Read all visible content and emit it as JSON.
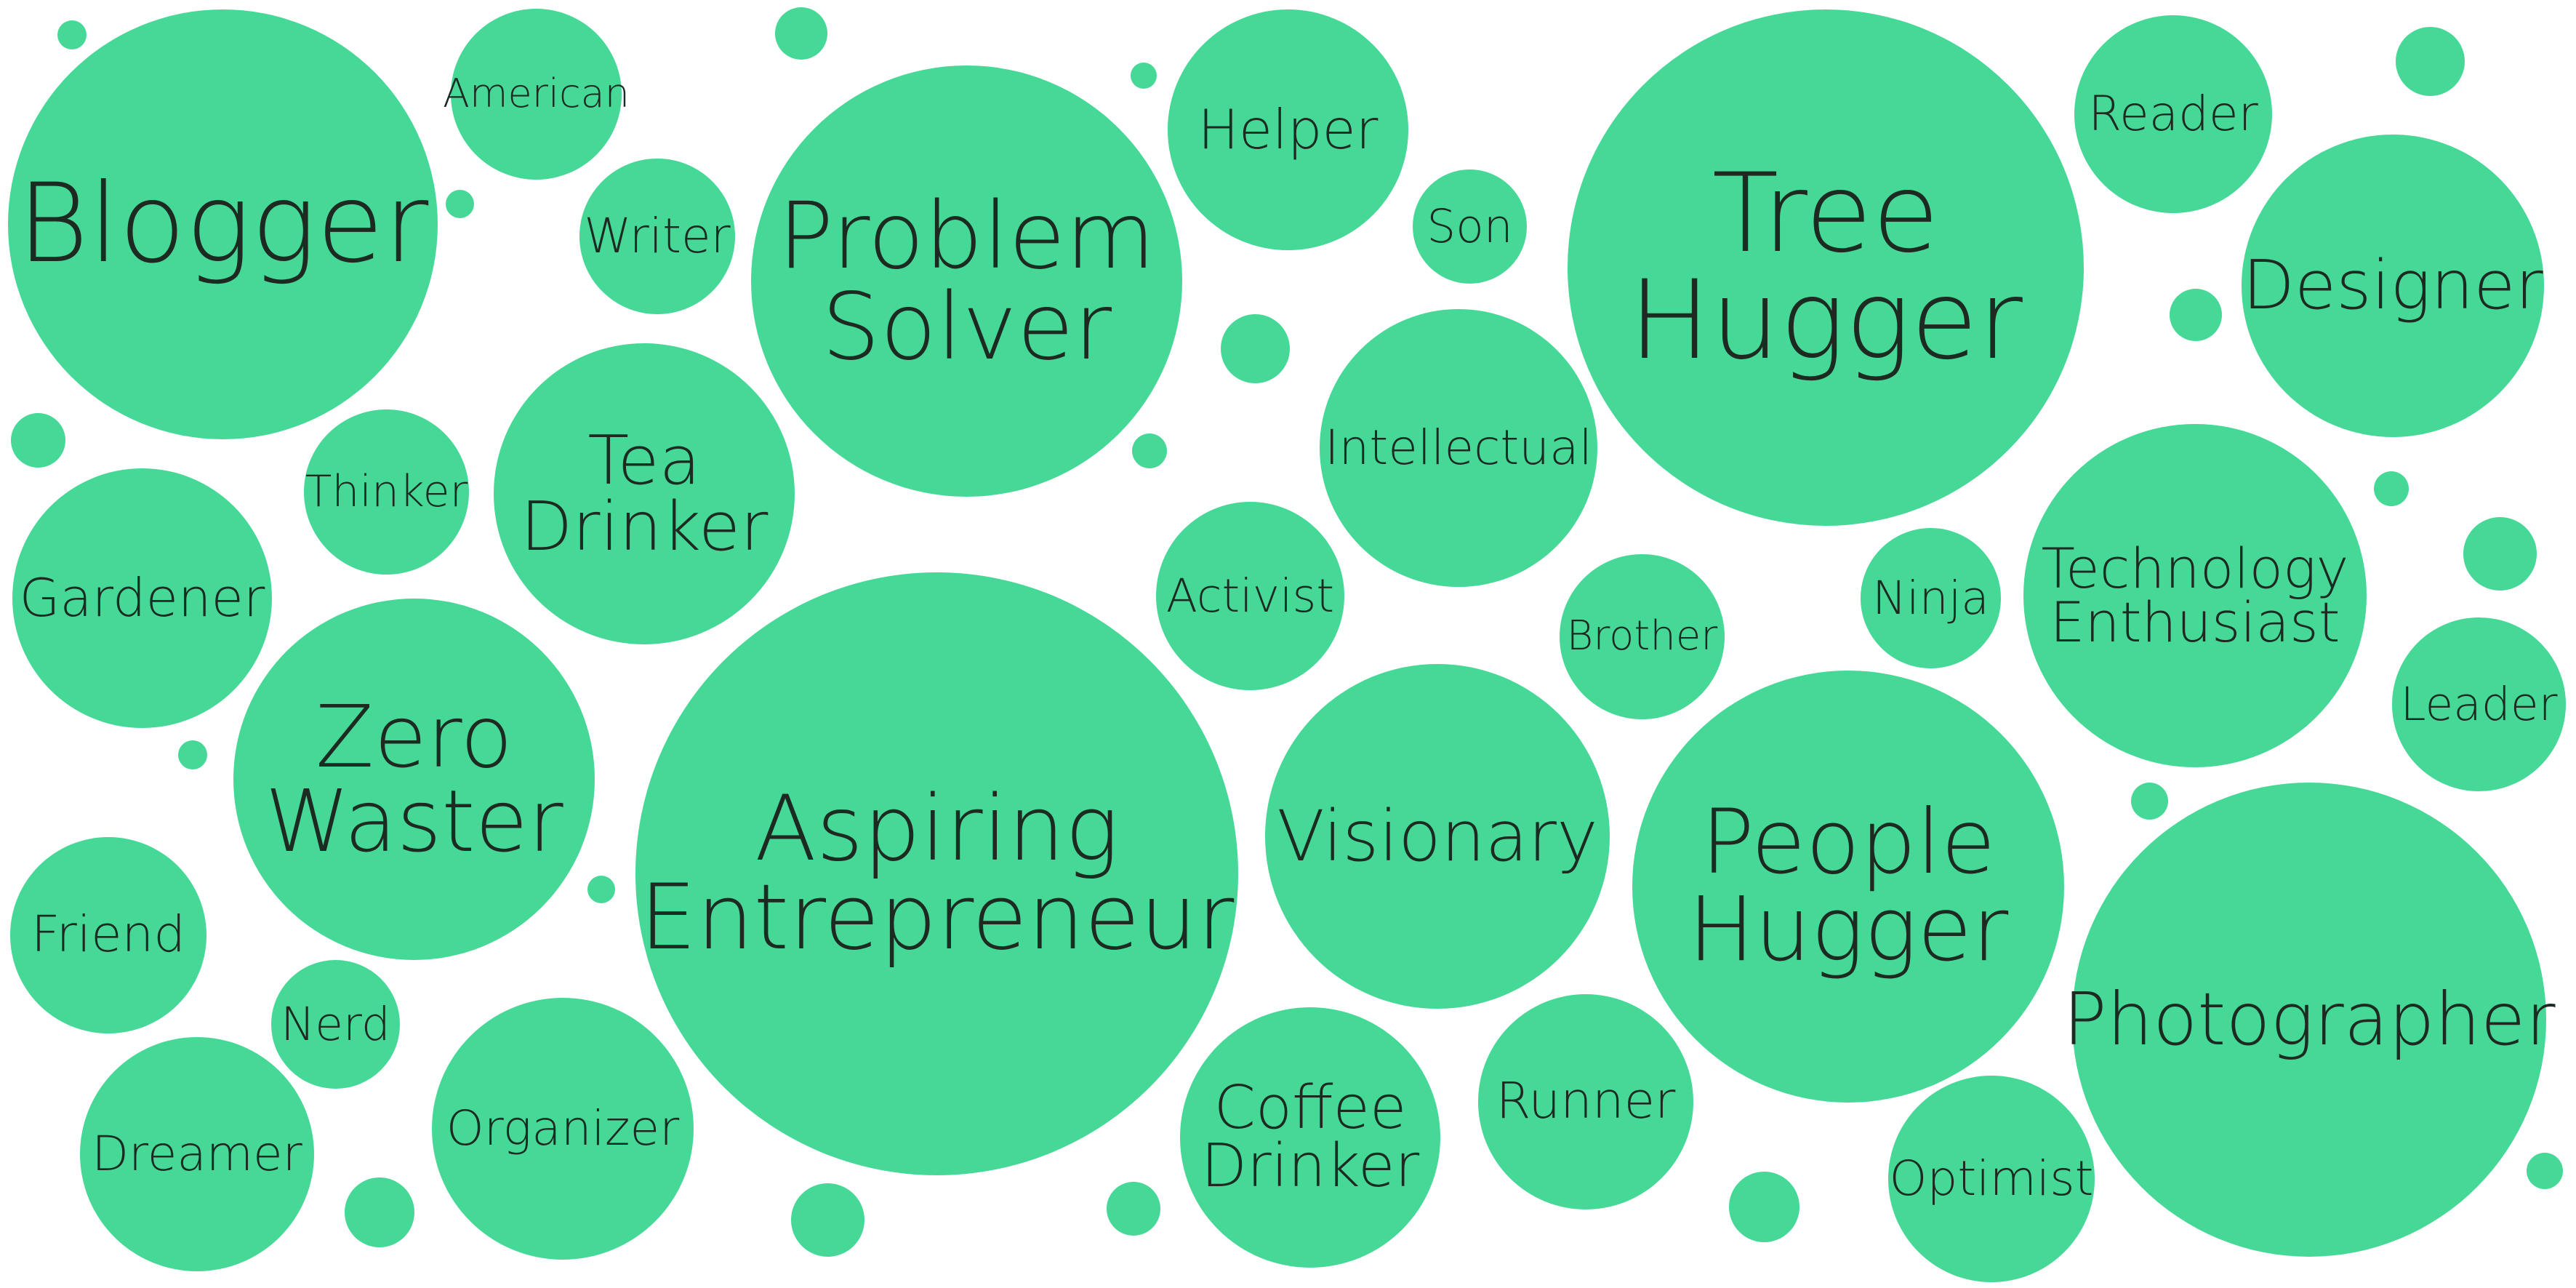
{
  "colors": {
    "bubble_fill": "#46d896",
    "label_text": "#1c2a22",
    "background": "#ffffff"
  },
  "bubbles": [
    {
      "label": "Blogger"
    },
    {
      "label": "American"
    },
    {
      "label": "Writer"
    },
    {
      "label": "Problem\nSolver"
    },
    {
      "label": "Helper"
    },
    {
      "label": "Son"
    },
    {
      "label": "Tree\nHugger"
    },
    {
      "label": "Reader"
    },
    {
      "label": "Designer"
    },
    {
      "label": "Thinker"
    },
    {
      "label": "Tea\nDrinker"
    },
    {
      "label": "Intellectual"
    },
    {
      "label": "Gardener"
    },
    {
      "label": "Activist"
    },
    {
      "label": "Brother"
    },
    {
      "label": "Ninja"
    },
    {
      "label": "Technology\nEnthusiast"
    },
    {
      "label": "Leader"
    },
    {
      "label": "Zero\nWaster"
    },
    {
      "label": "Aspiring\nEntrepreneur"
    },
    {
      "label": "Visionary"
    },
    {
      "label": "People\nHugger"
    },
    {
      "label": "Photographer"
    },
    {
      "label": "Friend"
    },
    {
      "label": "Nerd"
    },
    {
      "label": "Dreamer"
    },
    {
      "label": "Organizer"
    },
    {
      "label": "Coffee\nDrinker"
    },
    {
      "label": "Runner"
    },
    {
      "label": "Optimist"
    }
  ],
  "dot_count": 19
}
